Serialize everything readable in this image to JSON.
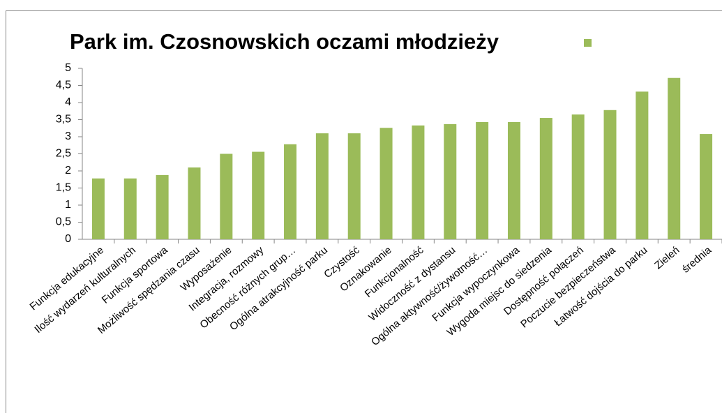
{
  "chart_data": {
    "type": "bar",
    "title": "Park im. Czosnowskich oczami młodzieży",
    "categories": [
      "Funkcja edukacyjne",
      "Ilość wydarzeń kulturalnych",
      "Funkcja sportowa",
      "Możliwość spędzania czasu",
      "Wyposażenie",
      "Integracja, rozmowy",
      "Obecność różnych grup…",
      "Ogólna atrakcyjność parku",
      "Czystość",
      "Oznakowanie",
      "Funkcjonalność",
      "Widoczność z dystansu",
      "Ogólna aktywność/żywotność…",
      "Funkcja wypoczynkowa",
      "Wygoda miejsc do siedzenia",
      "Dostępność połączeń",
      "Poczucie bezpieczeństwa",
      "Łatwość dojścia do parku",
      "Zieleń",
      "średnia"
    ],
    "values": [
      1.78,
      1.78,
      1.88,
      2.1,
      2.5,
      2.56,
      2.78,
      3.1,
      3.1,
      3.26,
      3.33,
      3.37,
      3.43,
      3.43,
      3.55,
      3.65,
      3.78,
      4.32,
      4.72,
      3.08
    ],
    "color": "#9bbb59",
    "ylim": [
      0,
      5
    ],
    "yticks": [
      0,
      {
        "value": 0.5,
        "label": "0,5"
      },
      1,
      {
        "value": 1.5,
        "label": "1,5"
      },
      2,
      {
        "value": 2.5,
        "label": "2,5"
      },
      3,
      {
        "value": 3.5,
        "label": "3,5"
      },
      4,
      {
        "value": 4.5,
        "label": "4,5"
      },
      5
    ],
    "grid": false
  }
}
